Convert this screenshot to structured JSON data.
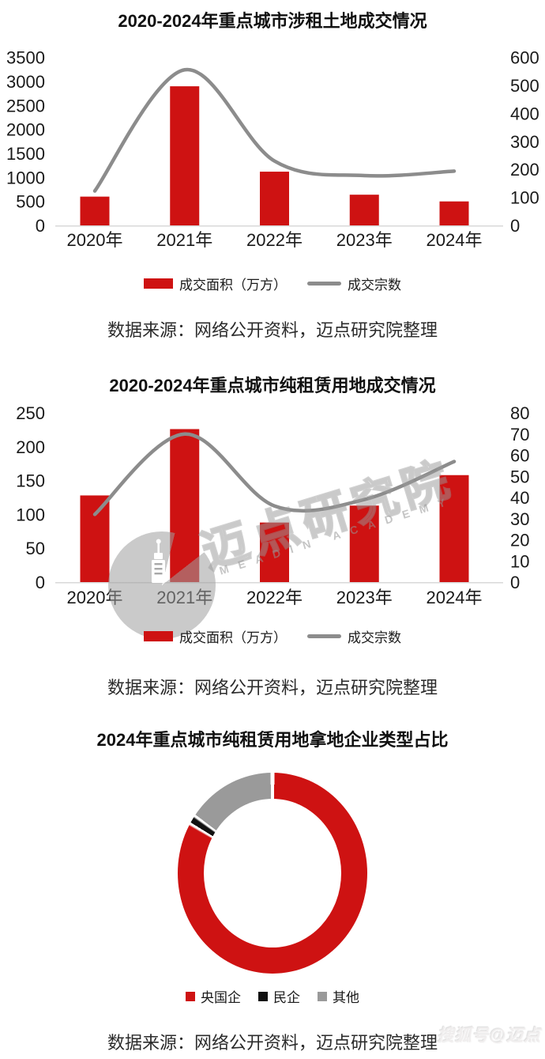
{
  "page": {
    "background": "#ffffff",
    "bottom_right_watermark": "搜狐号@迈点"
  },
  "colors": {
    "bar_red": "#CE1212",
    "line_gray": "#8C8C8C",
    "axis_line_gray": "#D9D9D9",
    "tick_text": "#1a1a1a",
    "donut_red": "#CE1212",
    "donut_black": "#111111",
    "donut_gray": "#9A9A9A"
  },
  "source_note": "数据来源：网络公开资料，迈点研究院整理",
  "watermark": {
    "cn": "迈点研究院",
    "en": "MEADIN ACADEMY"
  },
  "chart_data": [
    {
      "type": "combo-bar-line",
      "title": "2020-2024年重点城市涉租土地成交情况",
      "categories": [
        "2020年",
        "2021年",
        "2022年",
        "2023年",
        "2024年"
      ],
      "series": [
        {
          "name": "成交面积（万方）",
          "kind": "bar",
          "axis": "left",
          "values": [
            600,
            2900,
            1120,
            640,
            500
          ]
        },
        {
          "name": "成交宗数",
          "kind": "line",
          "axis": "right",
          "values": [
            123,
            556,
            230,
            178,
            194
          ]
        }
      ],
      "left_axis": {
        "ticks": [
          3500,
          3000,
          2500,
          2000,
          1500,
          1000,
          500,
          0
        ],
        "max": 3500
      },
      "right_axis": {
        "ticks": [
          600,
          500,
          400,
          300,
          200,
          100,
          0
        ],
        "max": 600
      },
      "grid": false,
      "legend_position": "bottom"
    },
    {
      "type": "combo-bar-line",
      "title": "2020-2024年重点城市纯租赁用地成交情况",
      "categories": [
        "2020年",
        "2021年",
        "2022年",
        "2023年",
        "2024年"
      ],
      "series": [
        {
          "name": "成交面积（万方）",
          "kind": "bar",
          "axis": "left",
          "values": [
            128,
            226,
            88,
            113,
            158
          ]
        },
        {
          "name": "成交宗数",
          "kind": "line",
          "axis": "right",
          "values": [
            32,
            70,
            36,
            39,
            57
          ]
        }
      ],
      "left_axis": {
        "ticks": [
          250,
          200,
          150,
          100,
          50,
          0
        ],
        "max": 250
      },
      "right_axis": {
        "ticks": [
          80,
          70,
          60,
          50,
          40,
          30,
          20,
          10,
          0
        ],
        "max": 80
      },
      "grid": false,
      "legend_position": "bottom"
    },
    {
      "type": "donut",
      "title": "2024年重点城市纯租赁用地拿地企业类型占比",
      "slices": [
        {
          "label": "央国企",
          "pct": 83.5,
          "color": "#CE1212"
        },
        {
          "label": "民企",
          "pct": 1.5,
          "color": "#111111"
        },
        {
          "label": "其他",
          "pct": 15.0,
          "color": "#9A9A9A"
        }
      ],
      "legend_position": "bottom"
    }
  ]
}
